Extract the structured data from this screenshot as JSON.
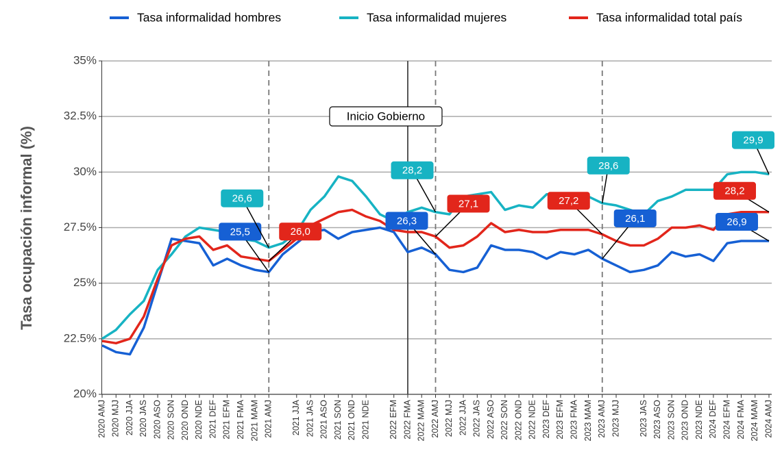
{
  "chart_data": {
    "type": "line",
    "y_label": "Tasa ocupación informal (%)",
    "categories": [
      "2020 AMJ",
      "2020 MJJ",
      "2020 JJA",
      "2020 JAS",
      "2020 ASO",
      "2020 SON",
      "2020 OND",
      "2020 NDE",
      "2021 DEF",
      "2021 EFM",
      "2021 FMA",
      "2021 MAM",
      "2021 AMJ",
      null,
      "2021 JJA",
      "2021 JAS",
      "2021 ASO",
      "2021 SON",
      "2021 OND",
      "2021 NDE",
      null,
      "2022 EFM",
      "2022 FMA",
      "2022 MAM",
      "2022 AMJ",
      "2022 MJJ",
      "2022 JJA",
      "2022 JAS",
      "2022 ASO",
      "2022 SON",
      "2022 OND",
      "2022 NDE",
      "2023 DEF",
      "2023 EFM",
      "2023 FMA",
      "2023 MAM",
      "2023 AMJ",
      "2023 MJJ",
      null,
      "2023 JAS",
      "2023 ASO",
      "2023 SON",
      "2023 OND",
      "2023 NDE",
      "2024 DEF",
      "2024 EFM",
      "2024 FMA",
      "2024 MAM",
      "2024 AMJ"
    ],
    "series": [
      {
        "name": "Tasa informalidad hombres",
        "color": "#1660d4",
        "values": [
          22.2,
          21.9,
          21.8,
          23.0,
          25.0,
          27.0,
          26.9,
          26.8,
          25.8,
          26.1,
          25.8,
          25.6,
          25.5,
          26.3,
          26.8,
          27.3,
          27.4,
          27.0,
          27.3,
          27.4,
          27.5,
          27.3,
          26.4,
          26.6,
          26.3,
          25.6,
          25.5,
          25.7,
          26.7,
          26.5,
          26.5,
          26.4,
          26.1,
          26.4,
          26.3,
          26.5,
          26.1,
          25.8,
          25.5,
          25.6,
          25.8,
          26.4,
          26.2,
          26.3,
          26.0,
          26.8,
          26.9,
          26.9,
          26.9
        ],
        "value_labels": [
          null,
          null,
          null,
          null,
          null,
          null,
          null,
          null,
          null,
          null,
          null,
          null,
          "25,5",
          null,
          null,
          null,
          null,
          null,
          null,
          null,
          null,
          null,
          null,
          null,
          "26,3",
          null,
          null,
          null,
          null,
          null,
          null,
          null,
          null,
          null,
          null,
          null,
          "26,1",
          null,
          null,
          null,
          null,
          null,
          null,
          null,
          null,
          null,
          null,
          null,
          "26,9"
        ]
      },
      {
        "name": "Tasa informalidad mujeres",
        "color": "#17b3c3",
        "values": [
          22.5,
          22.9,
          23.6,
          24.2,
          25.6,
          26.3,
          27.1,
          27.5,
          27.4,
          27.3,
          27.0,
          26.9,
          26.6,
          26.8,
          27.3,
          28.3,
          28.9,
          29.8,
          29.6,
          28.9,
          28.1,
          27.8,
          28.2,
          28.4,
          28.2,
          28.1,
          28.9,
          29.0,
          29.1,
          28.3,
          28.5,
          28.4,
          29.0,
          29.0,
          28.8,
          28.9,
          28.6,
          28.5,
          28.3,
          28.1,
          28.7,
          28.9,
          29.2,
          29.2,
          29.2,
          29.9,
          30.0,
          30.0,
          29.9
        ],
        "value_labels": [
          null,
          null,
          null,
          null,
          null,
          null,
          null,
          null,
          null,
          null,
          null,
          null,
          "26,6",
          null,
          null,
          null,
          null,
          null,
          null,
          null,
          null,
          null,
          null,
          null,
          "28,2",
          null,
          null,
          null,
          null,
          null,
          null,
          null,
          null,
          null,
          null,
          null,
          "28,6",
          null,
          null,
          null,
          null,
          null,
          null,
          null,
          null,
          null,
          null,
          null,
          "29,9"
        ]
      },
      {
        "name": "Tasa informalidad total país",
        "color": "#e2261b",
        "values": [
          22.4,
          22.3,
          22.5,
          23.5,
          25.2,
          26.7,
          27.0,
          27.1,
          26.5,
          26.7,
          26.2,
          26.1,
          26.0,
          26.5,
          27.0,
          27.6,
          27.9,
          28.2,
          28.3,
          28.0,
          27.8,
          27.4,
          27.3,
          27.3,
          27.1,
          26.6,
          26.7,
          27.1,
          27.7,
          27.3,
          27.4,
          27.3,
          27.3,
          27.4,
          27.4,
          27.4,
          27.2,
          26.9,
          26.7,
          26.7,
          27.0,
          27.5,
          27.5,
          27.6,
          27.4,
          28.1,
          28.2,
          28.2,
          28.2
        ],
        "value_labels": [
          null,
          null,
          null,
          null,
          null,
          null,
          null,
          null,
          null,
          null,
          null,
          null,
          "26,0",
          null,
          null,
          null,
          null,
          null,
          null,
          null,
          null,
          null,
          null,
          null,
          "27,1",
          null,
          null,
          null,
          null,
          null,
          null,
          null,
          null,
          null,
          null,
          null,
          "27,2",
          null,
          null,
          null,
          null,
          null,
          null,
          null,
          null,
          null,
          null,
          null,
          "28,2"
        ]
      }
    ],
    "ylim": [
      20,
      35
    ],
    "yticks": [
      {
        "value": 20,
        "label": "20%"
      },
      {
        "value": 22.5,
        "label": "22.5%"
      },
      {
        "value": 25,
        "label": "25%"
      },
      {
        "value": 27.5,
        "label": "27.5%"
      },
      {
        "value": 30,
        "label": "30%"
      },
      {
        "value": 32.5,
        "label": "32.5%"
      },
      {
        "value": 35,
        "label": "35%"
      }
    ],
    "grid": true,
    "legend": "top",
    "dashed_x": [
      "2021 AMJ",
      "2022 AMJ",
      "2023 AMJ"
    ],
    "annotation": {
      "text": "Inicio Gobierno",
      "x": "2022 FMA"
    }
  }
}
